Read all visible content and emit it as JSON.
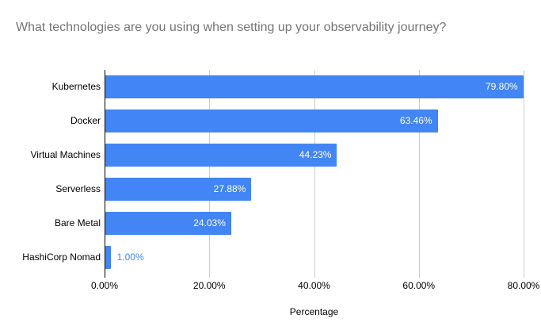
{
  "title": "What technologies are you using when setting up your observability journey?",
  "chart_data": {
    "type": "bar",
    "orientation": "horizontal",
    "title": "What technologies are you using when setting up your observability journey?",
    "categories": [
      "Kubernetes",
      "Docker",
      "Virtual Machines",
      "Serverless",
      "Bare Metal",
      "HashiCorp Nomad"
    ],
    "values": [
      79.8,
      63.46,
      44.23,
      27.88,
      24.03,
      1.0
    ],
    "value_labels": [
      "79.80%",
      "63.46%",
      "44.23%",
      "27.88%",
      "24.03%",
      "1.00%"
    ],
    "xlabel": "Percentage",
    "ylabel": "",
    "xlim": [
      0,
      80
    ],
    "x_tick_values": [
      0,
      20,
      40,
      60,
      80
    ],
    "x_tick_labels": [
      "0.00%",
      "20.00%",
      "40.00%",
      "60.00%",
      "80.00%"
    ],
    "grid": true,
    "legend": "none",
    "colors": {
      "bar": "#4285f4",
      "title_text": "#757575",
      "axis_text": "#000000",
      "gridline": "#cccccc",
      "zero_line": "#000000",
      "value_label_inside": "#ffffff",
      "value_label_outside": "#4285f4"
    }
  }
}
